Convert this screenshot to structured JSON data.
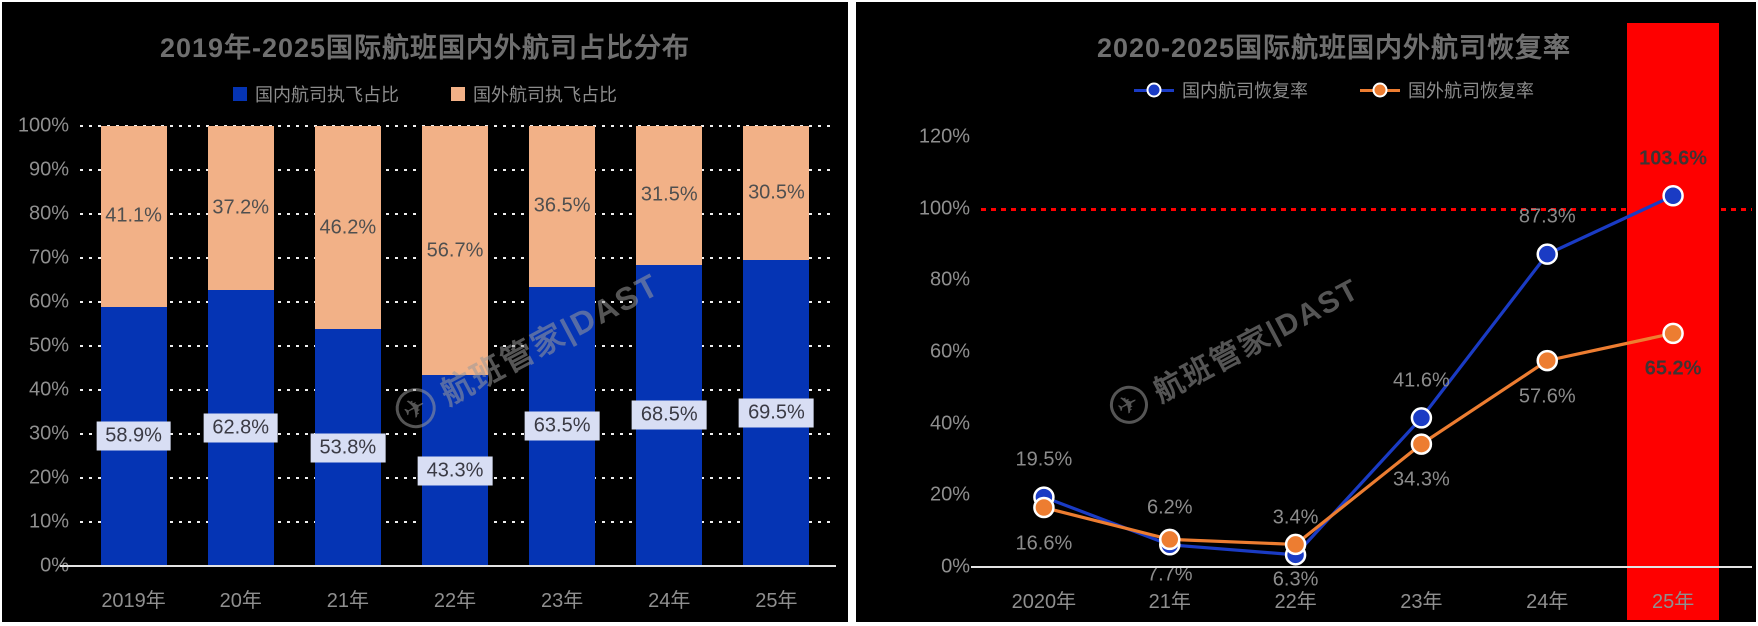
{
  "page": {
    "background": "#ffffff",
    "panel_background": "#000000"
  },
  "watermark": {
    "icon": "plane-globe",
    "text": "航班管家|DAST"
  },
  "chart_data": [
    {
      "type": "bar",
      "stacked": true,
      "title": "2019年-2025国际航班国内外航司占比分布",
      "categories": [
        "2019年",
        "20年",
        "21年",
        "22年",
        "23年",
        "24年",
        "25年"
      ],
      "series": [
        {
          "name": "国内航司执飞占比",
          "color": "#0534b4",
          "values": [
            58.9,
            62.8,
            53.8,
            43.3,
            63.5,
            68.5,
            69.5
          ],
          "labels": [
            "58.9%",
            "62.8%",
            "53.8%",
            "43.3%",
            "63.5%",
            "68.5%",
            "69.5%"
          ],
          "label_style": "boxed",
          "label_box_color": "#d8def4",
          "label_text_color": "#3a3a44"
        },
        {
          "name": "国外航司执飞占比",
          "color": "#f2b187",
          "values": [
            41.1,
            37.2,
            46.2,
            56.7,
            36.5,
            31.5,
            30.5
          ],
          "labels": [
            "41.1%",
            "37.2%",
            "46.2%",
            "56.7%",
            "36.5%",
            "31.5%",
            "30.5%"
          ],
          "label_style": "plain",
          "label_text_color": "#4f4f4f"
        }
      ],
      "ylim": [
        0,
        100
      ],
      "y_ticks": [
        "0%",
        "10%",
        "20%",
        "30%",
        "40%",
        "50%",
        "60%",
        "70%",
        "80%",
        "90%",
        "100%"
      ],
      "grid": "dotted-white-horizontal",
      "legend_position": "top"
    },
    {
      "type": "line",
      "title": "2020-2025国际航班国内外航司恢复率",
      "categories": [
        "2020年",
        "21年",
        "22年",
        "23年",
        "24年",
        "25年"
      ],
      "series": [
        {
          "name": "国内航司恢复率",
          "color": "#1a3bc4",
          "values": [
            19.5,
            6.2,
            3.4,
            41.6,
            87.3,
            103.6
          ],
          "labels": [
            "19.5%",
            "6.2%",
            "3.4%",
            "41.6%",
            "87.3%",
            "103.6%"
          ],
          "label_position": "above"
        },
        {
          "name": "国外航司恢复率",
          "color": "#ed7d31",
          "values": [
            16.6,
            7.7,
            6.3,
            34.3,
            57.6,
            65.2
          ],
          "labels": [
            "16.6%",
            "7.7%",
            "6.3%",
            "34.3%",
            "57.6%",
            "65.2%"
          ],
          "label_position": "below"
        }
      ],
      "ylim": [
        0,
        120
      ],
      "y_ticks": [
        "0%",
        "20%",
        "40%",
        "60%",
        "80%",
        "100%",
        "120%"
      ],
      "grid": "off",
      "reference_line": {
        "value": 100,
        "style": "dotted",
        "color": "#ff0000"
      },
      "highlight_column": {
        "category": "25年",
        "index": 5,
        "color": "#fe0000"
      },
      "label_color": "#8c8c8c",
      "label_color_on_highlight": "#3f3434",
      "legend_position": "top"
    }
  ]
}
